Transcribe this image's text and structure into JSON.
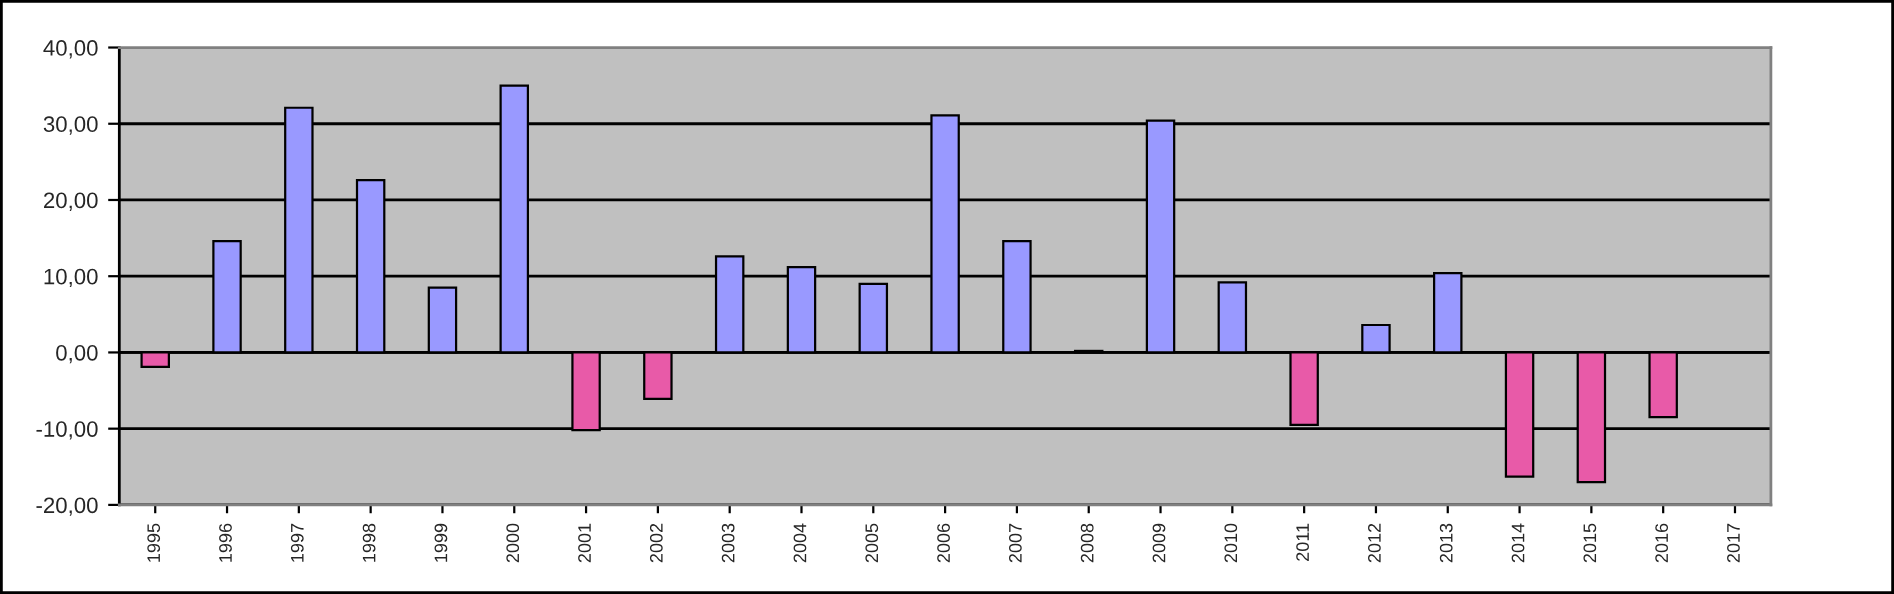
{
  "chart_data": {
    "type": "bar",
    "categories": [
      "1995",
      "1996",
      "1997",
      "1998",
      "1999",
      "2000",
      "2001",
      "2002",
      "2003",
      "2004",
      "2005",
      "2006",
      "2007",
      "2008",
      "2009",
      "2010",
      "2011",
      "2012",
      "2013",
      "2014",
      "2015",
      "2016",
      "2017"
    ],
    "values": [
      -1.9,
      14.6,
      32.1,
      22.6,
      8.5,
      35.0,
      -10.2,
      -6.1,
      12.6,
      11.2,
      9.0,
      31.1,
      14.6,
      0.2,
      30.4,
      9.2,
      -9.5,
      3.6,
      10.4,
      -16.3,
      -17.0,
      -8.5,
      null
    ],
    "colors": [
      "#e85aa8",
      "#9999ff",
      "#9999ff",
      "#9999ff",
      "#9999ff",
      "#9999ff",
      "#e85aa8",
      "#e85aa8",
      "#9999ff",
      "#9999ff",
      "#9999ff",
      "#9999ff",
      "#9999ff",
      "#9999ff",
      "#9999ff",
      "#9999ff",
      "#e85aa8",
      "#9999ff",
      "#9999ff",
      "#e85aa8",
      "#e85aa8",
      "#e85aa8",
      "#9999ff"
    ],
    "ylim": [
      -20,
      40
    ],
    "yticks": [
      {
        "value": -20,
        "label": "-20,00"
      },
      {
        "value": -10,
        "label": "-10,00"
      },
      {
        "value": 0,
        "label": "0,00"
      },
      {
        "value": 10,
        "label": "10,00"
      },
      {
        "value": 20,
        "label": "20,00"
      },
      {
        "value": 30,
        "label": "30,00"
      },
      {
        "value": 40,
        "label": "40,00"
      }
    ],
    "grid": "y",
    "legend": false
  }
}
